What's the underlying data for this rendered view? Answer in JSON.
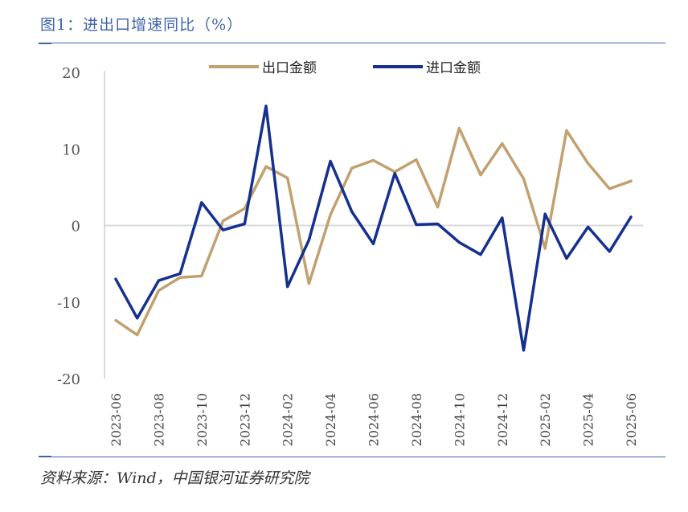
{
  "title": "图1：进出口增速同比（%）",
  "source": "资料来源：Wind，中国银河证券研究院",
  "colors": {
    "accent": "#3f63a9",
    "export": "#c2a06f",
    "import": "#15308e",
    "axis": "#d9d9d9"
  },
  "chart_data": {
    "type": "line",
    "title": "图1：进出口增速同比（%）",
    "xlabel": "",
    "ylabel": "",
    "ylim": [
      -20,
      20
    ],
    "yticks": [
      20,
      10,
      0,
      -10,
      -20
    ],
    "legend_position": "top",
    "x_tick_labels": [
      "2023-06",
      "2023-08",
      "2023-10",
      "2023-12",
      "2024-02",
      "2024-04",
      "2024-06",
      "2024-08",
      "2024-10",
      "2024-12",
      "2025-02",
      "2025-04",
      "2025-06"
    ],
    "x": [
      "2023-06",
      "2023-07",
      "2023-08",
      "2023-09",
      "2023-10",
      "2023-11",
      "2023-12",
      "2024-01",
      "2024-02",
      "2024-03",
      "2024-04",
      "2024-05",
      "2024-06",
      "2024-07",
      "2024-08",
      "2024-09",
      "2024-10",
      "2024-11",
      "2024-12",
      "2025-01",
      "2025-02",
      "2025-03",
      "2025-04",
      "2025-05",
      "2025-06"
    ],
    "series": [
      {
        "name": "出口金额",
        "color": "#c2a06f",
        "values": [
          -12.4,
          -14.3,
          -8.5,
          -6.8,
          -6.6,
          0.6,
          2.2,
          7.7,
          6.2,
          -7.6,
          1.4,
          7.5,
          8.5,
          7.0,
          8.6,
          2.4,
          12.7,
          6.6,
          10.7,
          6.1,
          -3.0,
          12.4,
          8.1,
          4.8,
          5.8
        ]
      },
      {
        "name": "进口金额",
        "color": "#15308e",
        "values": [
          -7.0,
          -12.1,
          -7.2,
          -6.3,
          3.0,
          -0.6,
          0.2,
          15.6,
          -8.0,
          -1.9,
          8.4,
          1.8,
          -2.4,
          6.8,
          0.1,
          0.2,
          -2.2,
          -3.8,
          1.0,
          -16.3,
          1.5,
          -4.3,
          -0.2,
          -3.4,
          1.1
        ]
      }
    ]
  }
}
